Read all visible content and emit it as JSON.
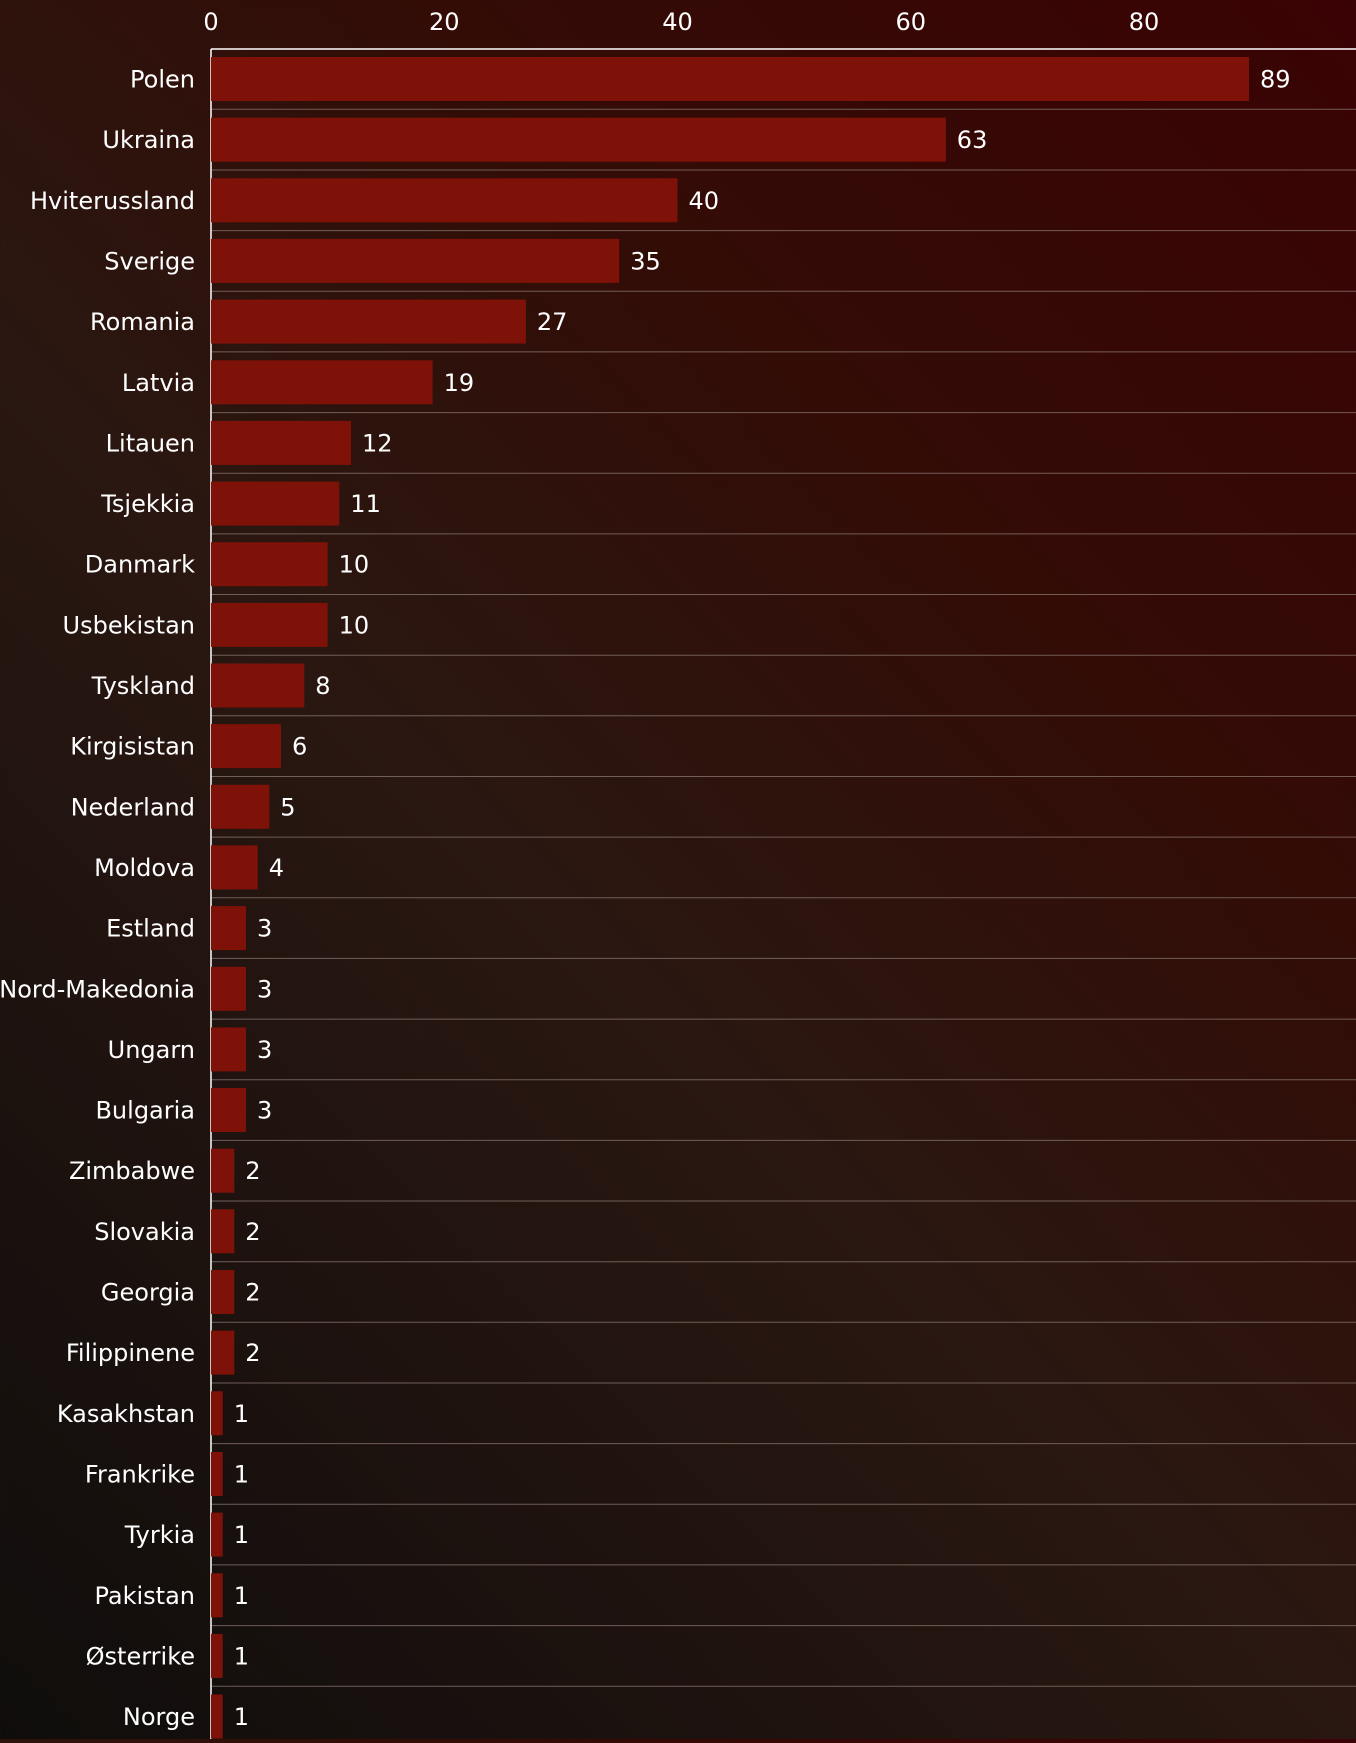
{
  "chart_data": {
    "type": "bar",
    "orientation": "horizontal",
    "title": "",
    "xlabel": "",
    "ylabel": "",
    "xlim": [
      0,
      98
    ],
    "x_ticks": [
      0,
      20,
      40,
      60,
      80
    ],
    "x_axis_position": "top",
    "grid": true,
    "legend": "none",
    "colors": {
      "bar": "#7e1208",
      "text": "#ffffff",
      "grid": "#8a7772",
      "axis": "#ffffff"
    },
    "categories": [
      "Polen",
      "Ukraina",
      "Hviterussland",
      "Sverige",
      "Romania",
      "Latvia",
      "Litauen",
      "Tsjekkia",
      "Danmark",
      "Usbekistan",
      "Tyskland",
      "Kirgisistan",
      "Nederland",
      "Moldova",
      "Estland",
      "Nord-Makedonia",
      "Ungarn",
      "Bulgaria",
      "Zimbabwe",
      "Slovakia",
      "Georgia",
      "Filippinene",
      "Kasakhstan",
      "Frankrike",
      "Tyrkia",
      "Pakistan",
      "Østerrike",
      "Norge"
    ],
    "values": [
      89,
      63,
      40,
      35,
      27,
      19,
      12,
      11,
      10,
      10,
      8,
      6,
      5,
      4,
      3,
      3,
      3,
      3,
      2,
      2,
      2,
      2,
      1,
      1,
      1,
      1,
      1,
      1
    ]
  }
}
